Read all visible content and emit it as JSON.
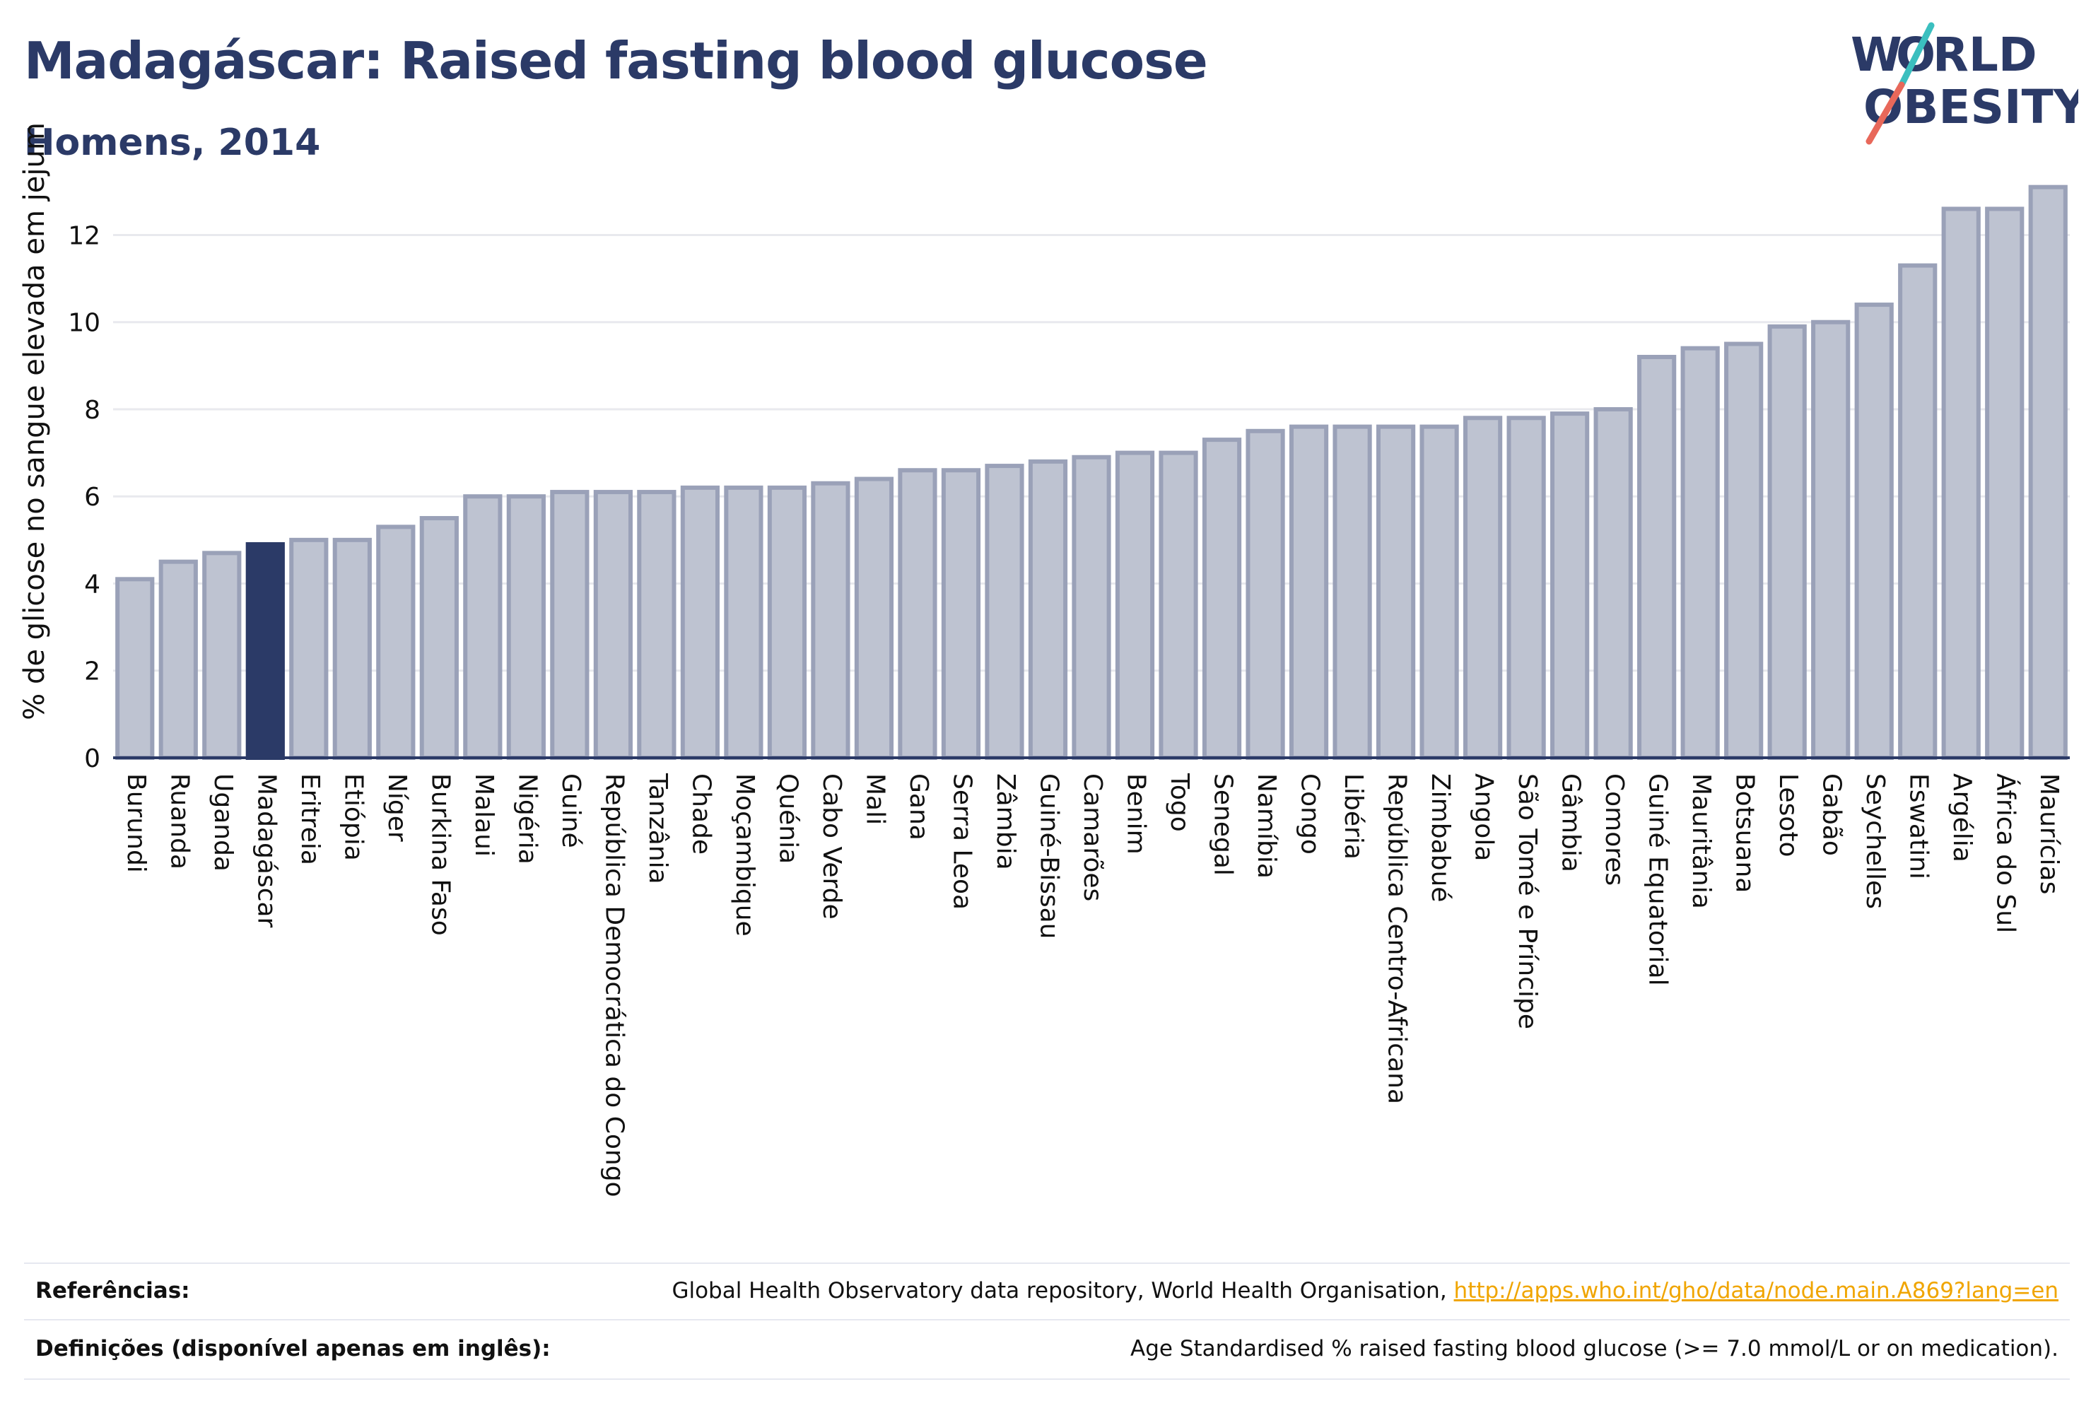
{
  "header": {
    "title": "Madagáscar: Raised fasting blood glucose",
    "subtitle": "Homens, 2014"
  },
  "logo": {
    "line1": "W RLD",
    "line2": "OBESITY",
    "text": "WORLD OBESITY",
    "colors": {
      "navy": "#2b3a67",
      "teal": "#3bbfbf",
      "coral": "#e8685a"
    }
  },
  "chart_data": {
    "type": "bar",
    "ylabel": "% de glicose no sangue elevada em jejum",
    "xlabel": "",
    "ylim": [
      0,
      13.5
    ],
    "yticks": [
      0,
      2,
      4,
      6,
      8,
      10,
      12
    ],
    "grid": true,
    "highlight": "Madagáscar",
    "colors": {
      "bar": "#bec3d1",
      "bar_edge": "#9aa1b8",
      "highlight": "#2b3a67"
    },
    "categories": [
      "Burundi",
      "Ruanda",
      "Uganda",
      "Madagáscar",
      "Eritreia",
      "Etiópia",
      "Níger",
      "Burkina Faso",
      "Malaui",
      "Nigéria",
      "Guiné",
      "República Democrática do Congo",
      "Tanzânia",
      "Chade",
      "Moçambique",
      "Quénia",
      "Cabo Verde",
      "Mali",
      "Gana",
      "Serra Leoa",
      "Zâmbia",
      "Guiné-Bissau",
      "Camarões",
      "Benim",
      "Togo",
      "Senegal",
      "Namíbia",
      "Congo",
      "Libéria",
      "República Centro-Africana",
      "Zimbabué",
      "Angola",
      "São Tomé e Príncipe",
      "Gâmbia",
      "Comores",
      "Guiné Equatorial",
      "Mauritânia",
      "Botsuana",
      "Lesoto",
      "Gabão",
      "Seychelles",
      "Eswatini",
      "Argélia",
      "África do Sul",
      "Maurícias"
    ],
    "values": [
      4.1,
      4.5,
      4.7,
      4.9,
      5.0,
      5.0,
      5.3,
      5.5,
      6.0,
      6.0,
      6.1,
      6.1,
      6.1,
      6.2,
      6.2,
      6.2,
      6.3,
      6.4,
      6.6,
      6.6,
      6.7,
      6.8,
      6.9,
      7.0,
      7.0,
      7.3,
      7.5,
      7.6,
      7.6,
      7.6,
      7.6,
      7.8,
      7.8,
      7.9,
      8.0,
      9.2,
      9.4,
      9.5,
      9.9,
      10.0,
      10.4,
      11.3,
      12.6,
      12.6,
      13.1
    ]
  },
  "footer": {
    "references_label": "Referências:",
    "references_text": "Global Health Observatory data repository, World Health Organisation, ",
    "references_link": "http://apps.who.int/gho/data/node.main.A869?lang=en",
    "definitions_label": "Definições (disponível apenas em inglês):",
    "definitions_text": "Age Standardised % raised fasting blood glucose (>= 7.0 mmol/L or on medication)."
  }
}
